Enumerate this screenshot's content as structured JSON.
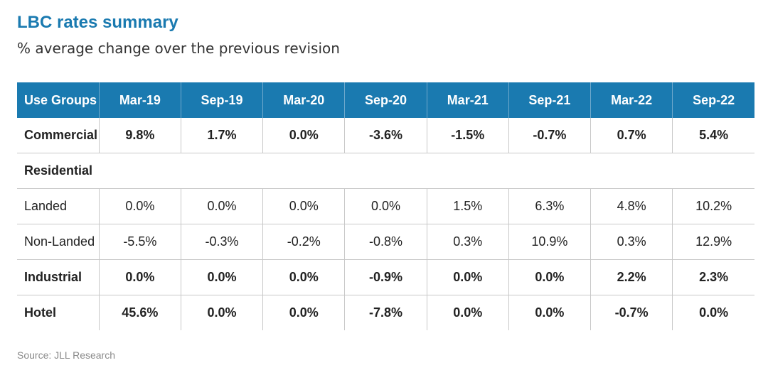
{
  "header": {
    "title": "LBC rates summary",
    "subtitle": "% average change over the previous revision"
  },
  "colors": {
    "header_bg": "#1a7ab0",
    "title": "#1a7ab0",
    "grid": "#c8c8c8"
  },
  "chart_data": {
    "type": "table",
    "title": "LBC rates summary",
    "subtitle": "% average change over the previous revision",
    "columns": [
      "Use Groups",
      "Mar-19",
      "Sep-19",
      "Mar-20",
      "Sep-20",
      "Mar-21",
      "Sep-21",
      "Mar-22",
      "Sep-22"
    ],
    "rows": [
      {
        "label": "Commercial",
        "bold": true,
        "values": [
          "9.8%",
          "1.7%",
          "0.0%",
          "-3.6%",
          "-1.5%",
          "-0.7%",
          "0.7%",
          "5.4%"
        ]
      },
      {
        "label": "Residential",
        "section": true,
        "values": []
      },
      {
        "label": "Landed",
        "bold": false,
        "values": [
          "0.0%",
          "0.0%",
          "0.0%",
          "0.0%",
          "1.5%",
          "6.3%",
          "4.8%",
          "10.2%"
        ]
      },
      {
        "label": "Non-Landed",
        "bold": false,
        "values": [
          "-5.5%",
          "-0.3%",
          "-0.2%",
          "-0.8%",
          "0.3%",
          "10.9%",
          "0.3%",
          "12.9%"
        ]
      },
      {
        "label": "Industrial",
        "bold": true,
        "values": [
          "0.0%",
          "0.0%",
          "0.0%",
          "-0.9%",
          "0.0%",
          "0.0%",
          "2.2%",
          "2.3%"
        ]
      },
      {
        "label": "Hotel",
        "bold": true,
        "values": [
          "45.6%",
          "0.0%",
          "0.0%",
          "-7.8%",
          "0.0%",
          "0.0%",
          "-0.7%",
          "0.0%"
        ]
      }
    ]
  },
  "footer": {
    "source": "Source: JLL Research"
  }
}
